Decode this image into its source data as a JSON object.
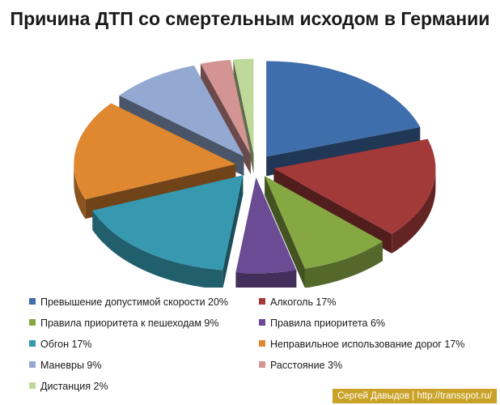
{
  "chart_data": {
    "type": "pie",
    "title": "Причина ДТП со смертельным исходом в Германии",
    "slices": [
      {
        "label": "Превышение допустимой скорости 20%",
        "value": 20,
        "color": "#3f6eac"
      },
      {
        "label": "Алкоголь 17%",
        "value": 17,
        "color": "#a33a3a"
      },
      {
        "label": "Правила приоритета к пешеходам 9%",
        "value": 9,
        "color": "#86a843"
      },
      {
        "label": "Правила приоритета 6%",
        "value": 6,
        "color": "#6a4b94"
      },
      {
        "label": "Обгон 17%",
        "value": 17,
        "color": "#3799b0"
      },
      {
        "label": "Неправильное использование дорог 17%",
        "value": 17,
        "color": "#e08830"
      },
      {
        "label": "Маневры 9%",
        "value": 9,
        "color": "#93a9d1"
      },
      {
        "label": "Расстояние 3%",
        "value": 3,
        "color": "#d49494"
      },
      {
        "label": "Дистанция 2%",
        "value": 2,
        "color": "#bfd99a"
      }
    ],
    "legend_placement": "bottom"
  },
  "watermark": "Сергей Давыдов | http://transspot.ru/"
}
